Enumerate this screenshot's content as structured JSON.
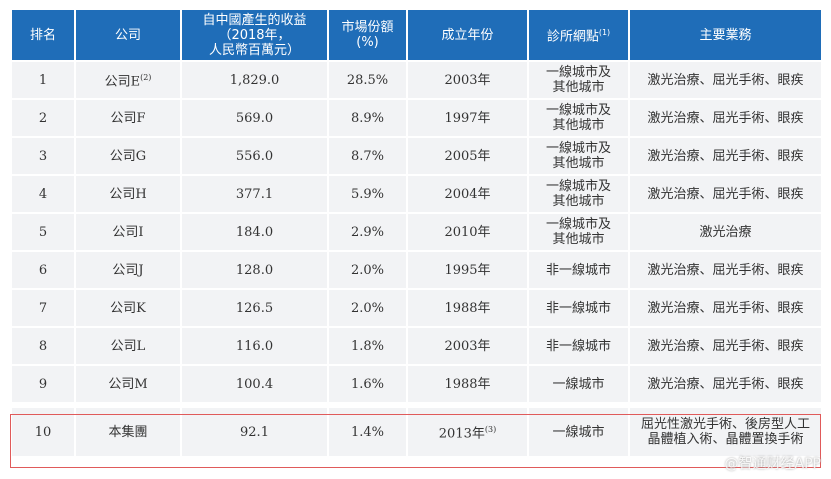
{
  "headers": [
    "排名",
    "公司",
    "自中國產生的收益\n（2018年，\n人民幣百萬元）",
    "市場份額\n(%)",
    "成立年份",
    "診所網點",
    "主要業務"
  ],
  "header_note": "(1)",
  "rows": [
    {
      "rank": "1",
      "company": "公司E",
      "company_note": "(2)",
      "revenue": "1,829.0",
      "share": "28.5%",
      "year": "2003年",
      "year_note": "",
      "network": "一線城市及\n其他城市",
      "business": "激光治療、屈光手術、眼疾"
    },
    {
      "rank": "2",
      "company": "公司F",
      "company_note": "",
      "revenue": "569.0",
      "share": "8.9%",
      "year": "1997年",
      "year_note": "",
      "network": "一線城市及\n其他城市",
      "business": "激光治療、屈光手術、眼疾"
    },
    {
      "rank": "3",
      "company": "公司G",
      "company_note": "",
      "revenue": "556.0",
      "share": "8.7%",
      "year": "2005年",
      "year_note": "",
      "network": "一線城市及\n其他城市",
      "business": "激光治療、屈光手術、眼疾"
    },
    {
      "rank": "4",
      "company": "公司H",
      "company_note": "",
      "revenue": "377.1",
      "share": "5.9%",
      "year": "2004年",
      "year_note": "",
      "network": "一線城市及\n其他城市",
      "business": "激光治療、屈光手術、眼疾"
    },
    {
      "rank": "5",
      "company": "公司I",
      "company_note": "",
      "revenue": "184.0",
      "share": "2.9%",
      "year": "2010年",
      "year_note": "",
      "network": "一線城市及\n其他城市",
      "business": "激光治療"
    },
    {
      "rank": "6",
      "company": "公司J",
      "company_note": "",
      "revenue": "128.0",
      "share": "2.0%",
      "year": "1995年",
      "year_note": "",
      "network": "非一線城市",
      "business": "激光治療、屈光手術、眼疾"
    },
    {
      "rank": "7",
      "company": "公司K",
      "company_note": "",
      "revenue": "126.5",
      "share": "2.0%",
      "year": "1988年",
      "year_note": "",
      "network": "非一線城市",
      "business": "激光治療、屈光手術、眼疾"
    },
    {
      "rank": "8",
      "company": "公司L",
      "company_note": "",
      "revenue": "116.0",
      "share": "1.8%",
      "year": "2003年",
      "year_note": "",
      "network": "非一線城市",
      "business": "激光治療、屈光手術、眼疾"
    },
    {
      "rank": "9",
      "company": "公司M",
      "company_note": "",
      "revenue": "100.4",
      "share": "1.6%",
      "year": "1988年",
      "year_note": "",
      "network": "一線城市",
      "business": "激光治療、屈光手術、眼疾"
    },
    {
      "rank": "10",
      "company": "本集團",
      "company_note": "",
      "revenue": "92.1",
      "share": "1.4%",
      "year": "2013年",
      "year_note": "(3)",
      "network": "一線城市",
      "business": "屈光性激光手術、後房型人工\n晶體植入術、晶體置換手術"
    }
  ],
  "highlight_color": "#e05a5a",
  "header_color": "#1f6db8",
  "watermark": "@智通财经APP"
}
